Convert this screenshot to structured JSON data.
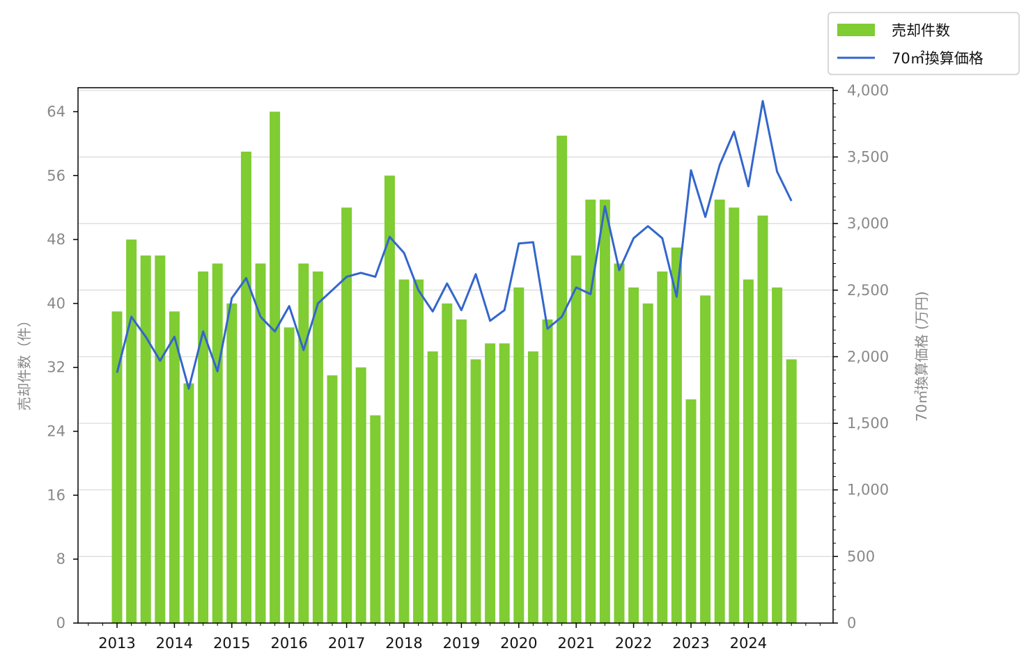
{
  "chart_data": {
    "type": "bar",
    "title": "",
    "x_ticks": [
      "2013",
      "2014",
      "2015",
      "2016",
      "2017",
      "2018",
      "2019",
      "2020",
      "2021",
      "2022",
      "2023",
      "2024"
    ],
    "quarters_per_year": 4,
    "start_year": 2013,
    "series": [
      {
        "name": "売却件数",
        "type": "bar",
        "axis": "left",
        "color": "#7fcc33",
        "values": [
          39,
          48,
          46,
          46,
          39,
          30,
          44,
          45,
          40,
          59,
          45,
          64,
          37,
          45,
          44,
          31,
          52,
          32,
          26,
          56,
          43,
          43,
          34,
          40,
          38,
          33,
          35,
          35,
          42,
          34,
          38,
          61,
          46,
          53,
          53,
          45,
          42,
          40,
          44,
          47,
          28,
          41,
          53,
          52,
          43,
          51,
          42,
          33
        ]
      },
      {
        "name": "70㎡換算価格",
        "type": "line",
        "axis": "right",
        "color": "#3366cc",
        "values": [
          1880,
          2300,
          2150,
          1970,
          2150,
          1760,
          2190,
          1890,
          2440,
          2590,
          2300,
          2190,
          2380,
          2050,
          2400,
          2500,
          2600,
          2630,
          2600,
          2900,
          2780,
          2500,
          2340,
          2550,
          2350,
          2620,
          2270,
          2350,
          2850,
          2860,
          2210,
          2300,
          2520,
          2470,
          3130,
          2650,
          2890,
          2980,
          2890,
          2450,
          3400,
          3050,
          3440,
          3690,
          3280,
          3920,
          3390,
          3170
        ]
      }
    ],
    "y_left": {
      "label": "売却件数（件）",
      "lim": [
        0,
        67
      ],
      "ticks": [
        0,
        8,
        16,
        24,
        32,
        40,
        48,
        56,
        64
      ]
    },
    "y_right": {
      "label": "70㎡換算価格 (万円)",
      "lim": [
        0,
        4020
      ],
      "ticks": [
        0,
        500,
        1000,
        1500,
        2000,
        2500,
        3000,
        3500,
        4000
      ],
      "tick_labels": [
        "0",
        "500",
        "1,000",
        "1,500",
        "2,000",
        "2,500",
        "3,000",
        "3,500",
        "4,000"
      ]
    },
    "grid": "horizontal-right",
    "legend": "top-right-outside"
  }
}
